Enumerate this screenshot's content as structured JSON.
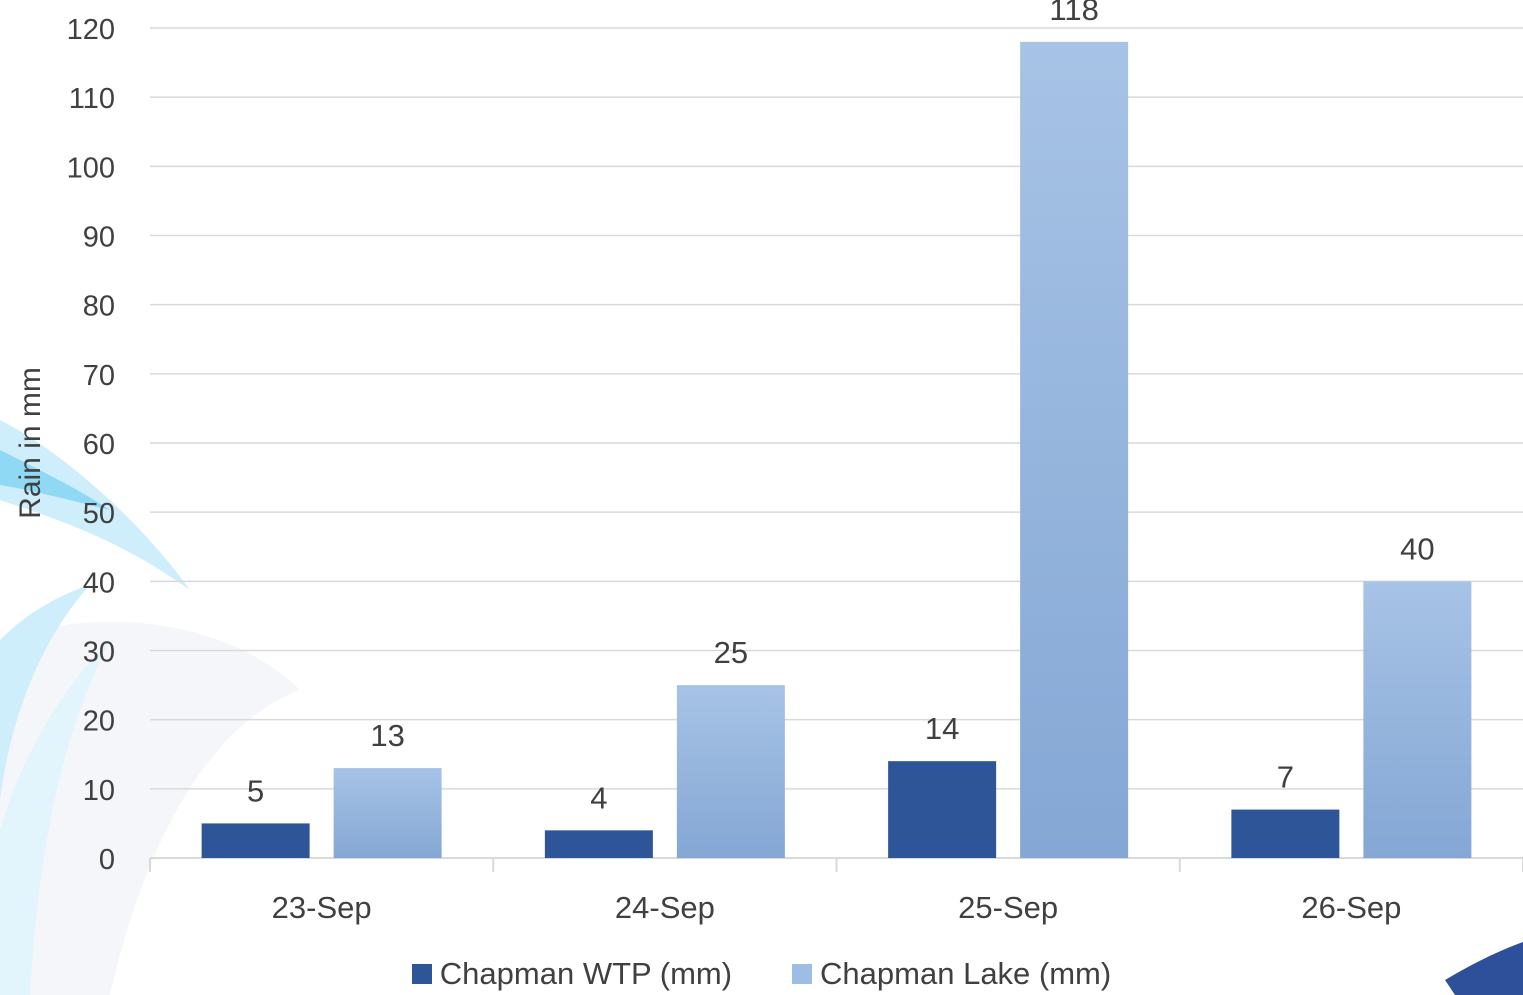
{
  "chart_data": {
    "type": "bar",
    "title": "",
    "xlabel": "",
    "ylabel": "Rain in mm",
    "categories": [
      "23-Sep",
      "24-Sep",
      "25-Sep",
      "26-Sep"
    ],
    "series": [
      {
        "name": "Chapman WTP (mm)",
        "values": [
          5,
          4,
          14,
          7
        ],
        "color": "#2e5597"
      },
      {
        "name": "Chapman Lake (mm)",
        "values": [
          13,
          25,
          118,
          40
        ],
        "color": "#9dbde4"
      }
    ],
    "ylim": [
      0,
      120
    ],
    "yticks": [
      0,
      10,
      20,
      30,
      40,
      50,
      60,
      70,
      80,
      90,
      100,
      110,
      120
    ],
    "grid": true,
    "legend_position": "bottom",
    "data_labels": true
  },
  "colors": {
    "grid": "#d9d9d9",
    "text": "#404040",
    "wtp_bar": "#2e5597",
    "lake_top": "#a7c3e6",
    "lake_bottom": "#84a7d4",
    "decor_light": "#cfeefb",
    "decor_mid": "#8fd9f5"
  }
}
